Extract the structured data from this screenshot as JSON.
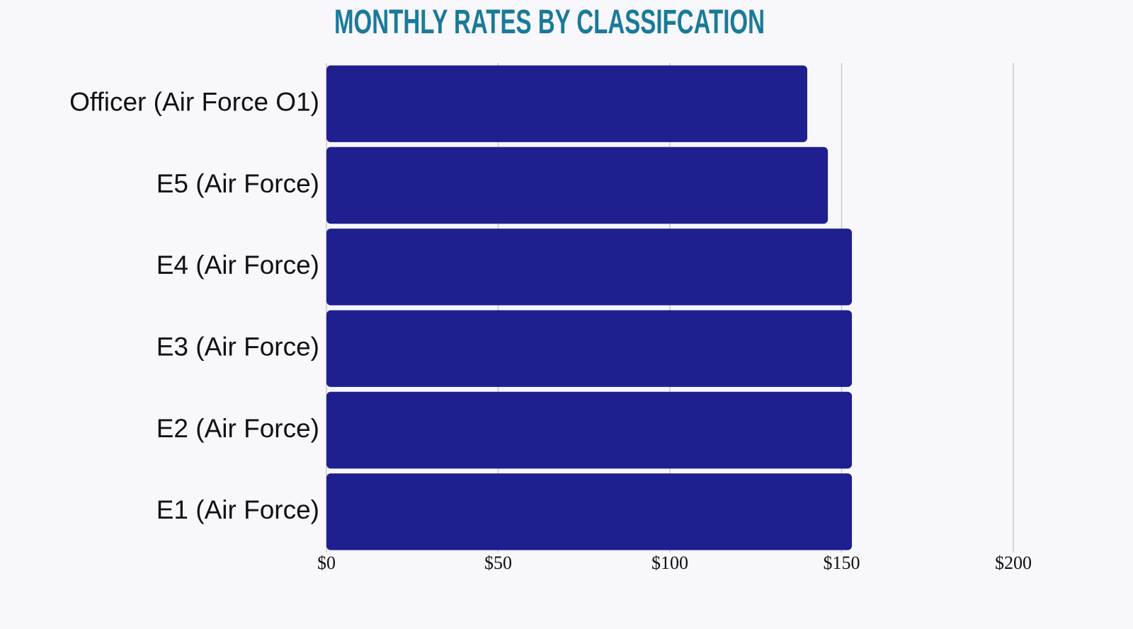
{
  "chart_data": {
    "type": "bar",
    "orientation": "horizontal",
    "title": "MONTHLY RATES BY CLASSIFCATION",
    "categories": [
      "Officer (Air Force O1)",
      "E5 (Air Force)",
      "E4 (Air Force)",
      "E3 (Air Force)",
      "E2 (Air Force)",
      "E1 (Air Force)"
    ],
    "values": [
      140,
      146,
      153,
      153,
      153,
      153
    ],
    "color": "#1f1f8f",
    "xlim": [
      0,
      200
    ],
    "xticks": [
      {
        "value": 0,
        "label": "$0"
      },
      {
        "value": 50,
        "label": "$50"
      },
      {
        "value": 100,
        "label": "$100"
      },
      {
        "value": 150,
        "label": "$150"
      },
      {
        "value": 200,
        "label": "$200"
      }
    ],
    "grid": true
  }
}
